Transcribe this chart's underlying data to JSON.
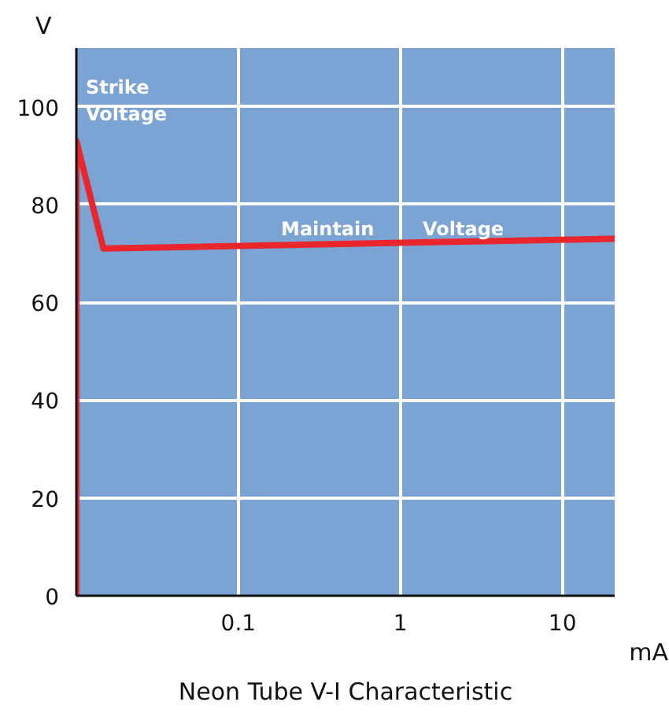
{
  "chart_data": {
    "type": "line",
    "title": "Neon Tube V-I Characteristic",
    "xlabel": "mA",
    "ylabel": "V",
    "log": "x",
    "xlim": [
      0.01,
      21
    ],
    "ylim": [
      0,
      112
    ],
    "xticks": [
      0.1,
      1,
      10
    ],
    "yticks": [
      0,
      20,
      40,
      60,
      80,
      100
    ],
    "grid": true,
    "series": [
      {
        "color": "#e8262b",
        "x": [
          0.01,
          0.01,
          0.0147,
          21
        ],
        "values": [
          0,
          93,
          71,
          73
        ]
      }
    ],
    "annotations": [
      "Strike Voltage",
      "Maintain",
      "Voltage"
    ]
  }
}
